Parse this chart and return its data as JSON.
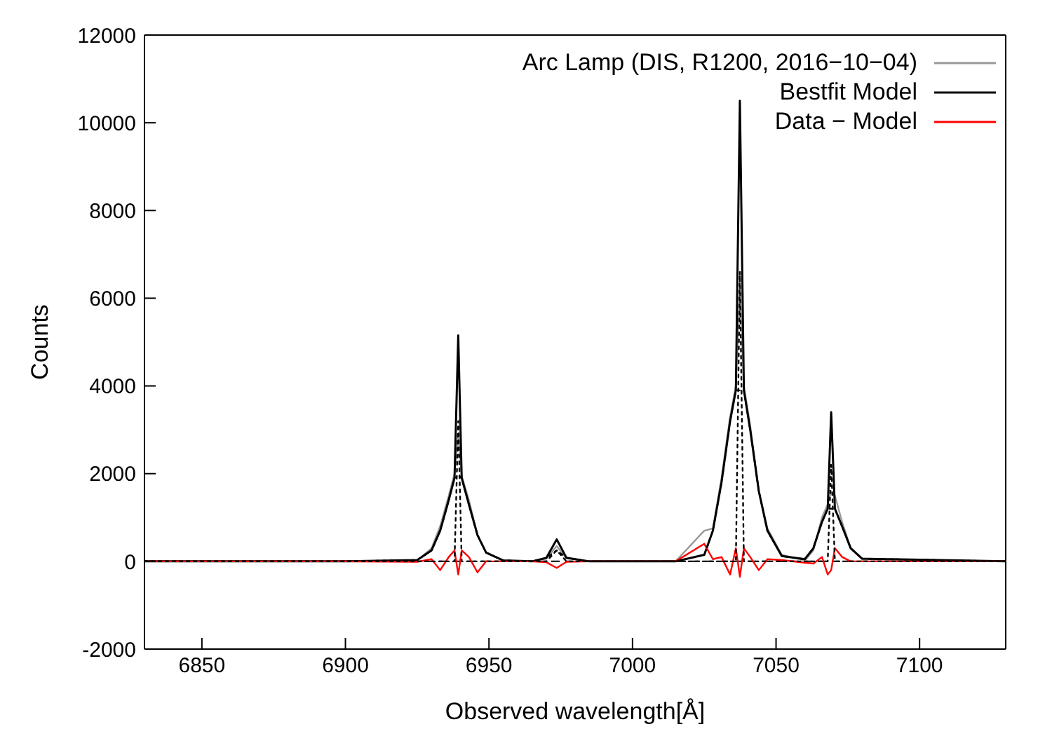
{
  "chart_data": {
    "type": "line",
    "xlabel": "Observed wavelength[Å]",
    "ylabel": "Counts",
    "x": [
      6830,
      6900,
      6925,
      6930,
      6933,
      6936,
      6938,
      6939.3,
      6940.5,
      6943,
      6946,
      6949,
      6955,
      6965,
      6970,
      6973.6,
      6977,
      6985,
      7015,
      7025,
      7028,
      7031,
      7034,
      7036,
      7037.4,
      7038.8,
      7041,
      7044,
      7047,
      7052,
      7060,
      7063,
      7066,
      7068,
      7069.2,
      7070.5,
      7073,
      7076,
      7080,
      7130
    ],
    "series": [
      {
        "name": "Arc Lamp (DIS, R1200, 2016−10−04)",
        "color": "#999999",
        "values": [
          0,
          0,
          20,
          300,
          800,
          1500,
          2000,
          2900,
          1950,
          1400,
          600,
          200,
          20,
          0,
          60,
          350,
          70,
          0,
          0,
          700,
          750,
          1900,
          3300,
          4000,
          6200,
          4000,
          3100,
          1600,
          750,
          150,
          20,
          250,
          1000,
          1300,
          1600,
          1500,
          900,
          300,
          60,
          0
        ]
      },
      {
        "name": "Bestfit Model",
        "color": "#000000",
        "values": [
          0,
          0,
          30,
          250,
          700,
          1400,
          1900,
          5150,
          1900,
          1300,
          600,
          200,
          20,
          0,
          80,
          500,
          80,
          0,
          0,
          150,
          700,
          1800,
          3200,
          3900,
          10500,
          3900,
          3000,
          1600,
          700,
          120,
          50,
          300,
          900,
          1200,
          3400,
          1200,
          800,
          300,
          60,
          0
        ]
      },
      {
        "name": "Data − Model",
        "color": "#ff0000",
        "values": [
          0,
          0,
          -10,
          50,
          -200,
          100,
          250,
          -300,
          250,
          100,
          -250,
          0,
          0,
          0,
          -20,
          -150,
          -10,
          0,
          0,
          400,
          50,
          100,
          -300,
          300,
          -350,
          300,
          100,
          -200,
          50,
          30,
          -30,
          -50,
          100,
          -300,
          -200,
          300,
          100,
          0,
          0,
          0
        ]
      },
      {
        "color": "#000000",
        "line_style": "dotted",
        "values": [
          0,
          0,
          30,
          250,
          700,
          1400,
          1900,
          1950,
          1900,
          1300,
          600,
          200,
          20,
          0,
          80,
          250,
          80,
          0,
          0,
          150,
          700,
          1800,
          3200,
          3900,
          3900,
          3900,
          3000,
          1600,
          700,
          120,
          50,
          300,
          900,
          1200,
          1200,
          1200,
          800,
          300,
          60,
          0
        ]
      },
      {
        "color": "#000000",
        "line_style": "dotted",
        "values": [
          0,
          0,
          0,
          0,
          0,
          0,
          0,
          3200,
          0,
          0,
          0,
          0,
          0,
          0,
          0,
          250,
          0,
          0,
          0,
          0,
          0,
          0,
          0,
          0,
          6600,
          0,
          0,
          0,
          0,
          0,
          0,
          0,
          0,
          0,
          2200,
          0,
          0,
          0,
          0,
          0
        ]
      }
    ],
    "xlim": [
      6830,
      7130
    ],
    "xticks": [
      6850,
      6900,
      6950,
      7000,
      7050,
      7100
    ],
    "ylim": [
      -2000,
      12000
    ],
    "yticks": [
      -2000,
      0,
      2000,
      4000,
      6000,
      8000,
      10000,
      12000
    ],
    "ref_lines": [
      {
        "axis": "y",
        "value": 0,
        "color": "#000000",
        "line_style": "dashed"
      }
    ],
    "grid": false,
    "legend": "top right",
    "marker": "none",
    "line_style": "solid"
  }
}
